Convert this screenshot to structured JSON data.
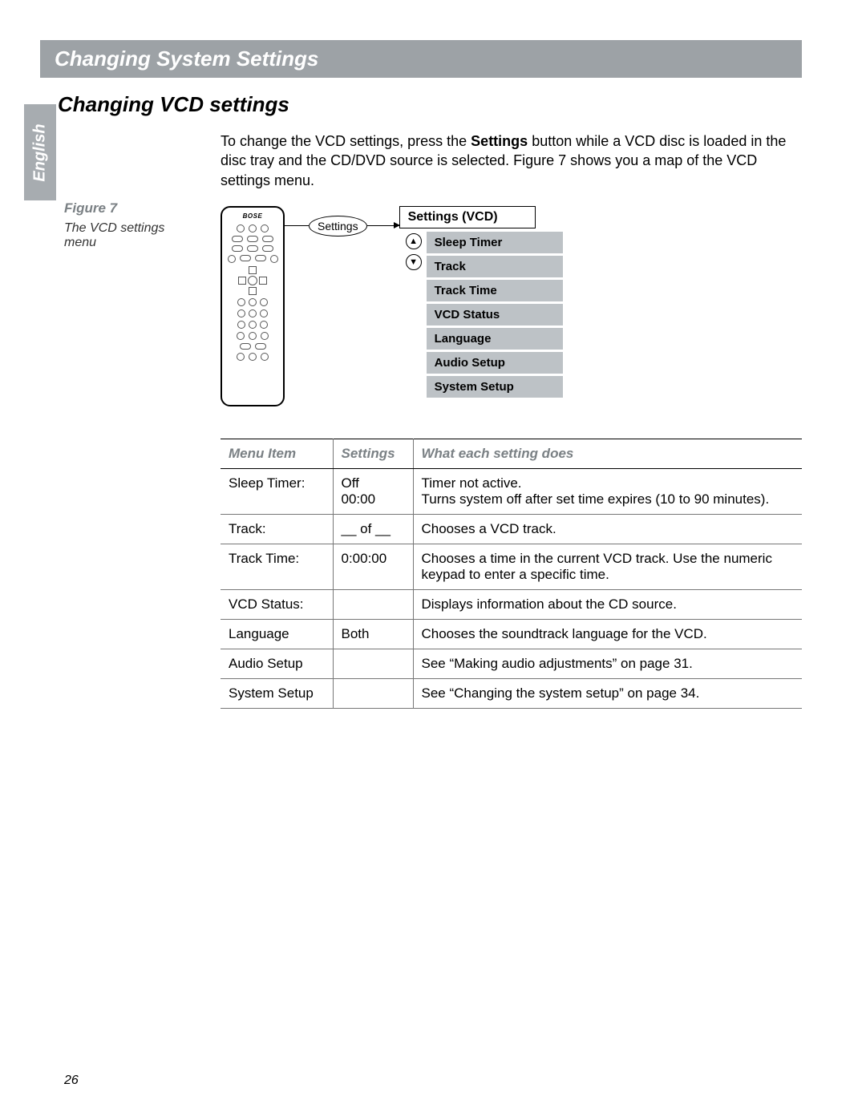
{
  "header": {
    "title": "Changing System Settings"
  },
  "section": {
    "title": "Changing VCD settings"
  },
  "languageTab": "English",
  "intro": {
    "part1": "To change the VCD settings, press the ",
    "bold": "Settings",
    "part2": " button while a VCD disc is loaded in the disc tray and the CD/DVD source is selected. Figure 7 shows you a map of the VCD settings menu."
  },
  "figure": {
    "label": "Figure 7",
    "caption": "The VCD settings menu",
    "calloutBtn": "Settings",
    "menuTitle": "Settings (VCD)",
    "menuItems": [
      "Sleep Timer",
      "Track",
      "Track Time",
      "VCD Status",
      "Language",
      "Audio Setup",
      "System Setup"
    ],
    "navUp": "▲",
    "navDown": "▼",
    "remoteBrand": "BOSE"
  },
  "table": {
    "headers": [
      "Menu Item",
      "Settings",
      "What each setting does"
    ],
    "rows": [
      {
        "item": "Sleep Timer:",
        "setting": "Off\n00:00",
        "desc": "Timer not active.\nTurns system off after set time expires (10 to 90 minutes)."
      },
      {
        "item": "Track:",
        "setting": "__ of __",
        "desc": "Chooses a VCD track."
      },
      {
        "item": "Track Time:",
        "setting": "0:00:00",
        "desc": "Chooses a time in the current VCD track. Use the numeric keypad to enter a specific time."
      },
      {
        "item": "VCD Status:",
        "setting": "",
        "desc": "Displays information about the CD source."
      },
      {
        "item": "Language",
        "setting": "Both",
        "desc": "Chooses the soundtrack language for the VCD."
      },
      {
        "item": "Audio Setup",
        "setting": "",
        "desc": "See “Making audio adjustments” on page 31."
      },
      {
        "item": "System Setup",
        "setting": "",
        "desc": "See “Changing the system setup” on page 34."
      }
    ]
  },
  "pageNumber": "26",
  "colors": {
    "headerBg": "#9da2a6",
    "tabBg": "#a7acb0",
    "menuItemBg": "#bdc2c6",
    "figLabel": "#7a8084"
  }
}
